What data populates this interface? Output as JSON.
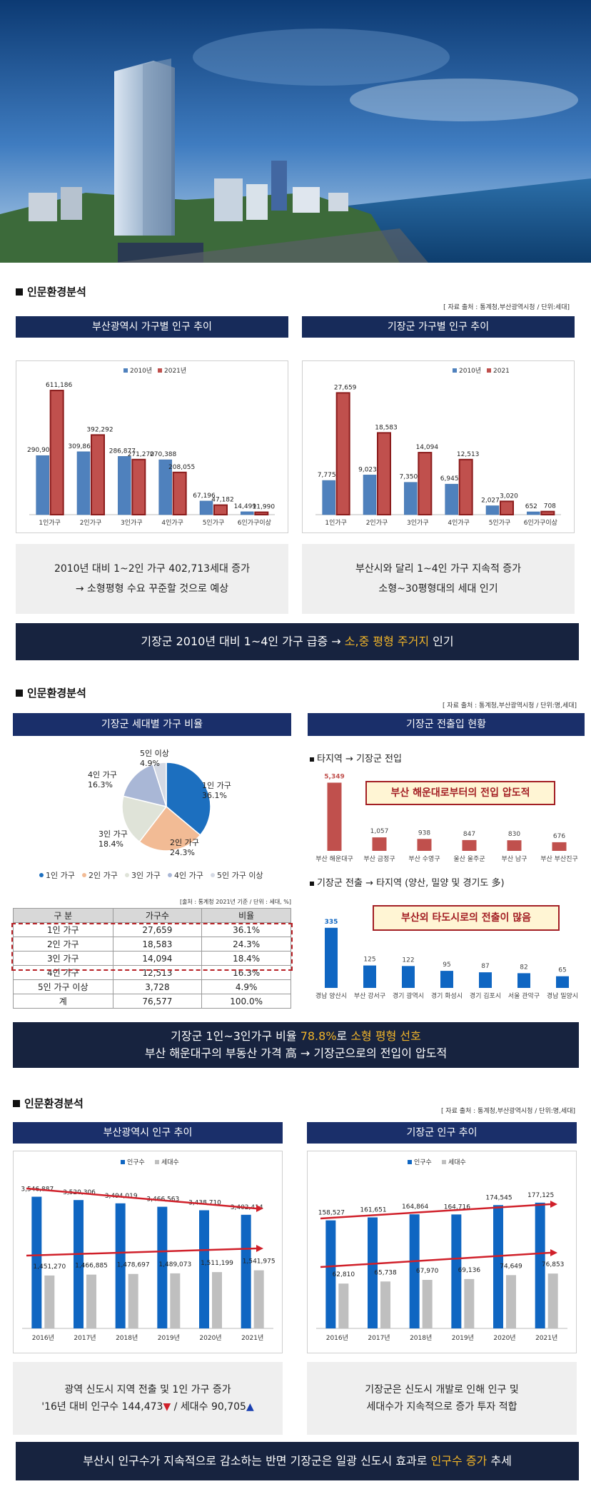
{
  "section1": {
    "title": "인문환경분석",
    "source": "[ 자료 출처 : 통계청,부산광역시청 / 단위:세대]",
    "left_header": "부산광역시 가구별 인구 추이",
    "right_header": "기장군 가구별 인구 추이",
    "left_note_1": "2010년 대비 1~2인 가구 402,713세대 증가",
    "left_note_2": "→ 소형평형 수요 꾸준할 것으로 예상",
    "right_note_1": "부산시와 달리 1~4인 가구 지속적 증가",
    "right_note_2": "소형~30평형대의 세대 인기",
    "banner_a": "기장군 2010년 대비 1~4인 가구 급증 → ",
    "banner_hl": "소,중 평형 주거지",
    "banner_b": " 인기"
  },
  "section2": {
    "title": "인문환경분석",
    "source": "[ 자료 출처 : 통계청,부산광역시청 / 단위:명,세대]",
    "left_header": "기장군 세대별 가구 비율",
    "right_header": "기장군 전출입 현황",
    "sub1": "타지역 → 기장군 전입",
    "sub2": "기장군 전출 → 타지역 (양산, 밀양 및 경기도 多)",
    "box1": "부산 해운대로부터의 전입 압도적",
    "box2": "부산외 타도시로의 전출이 많음",
    "table_source": "[출처 : 통계청 2021년 기준 / 단위 : 세대, %]",
    "table_headers": [
      "구 분",
      "가구수",
      "비율"
    ],
    "table_rows": [
      [
        "1인 가구",
        "27,659",
        "36.1%"
      ],
      [
        "2인 가구",
        "18,583",
        "24.3%"
      ],
      [
        "3인 가구",
        "14,094",
        "18.4%"
      ],
      [
        "4인 가구",
        "12,513",
        "16.3%"
      ],
      [
        "5인 가구 이상",
        "3,728",
        "4.9%"
      ],
      [
        "계",
        "76,577",
        "100.0%"
      ]
    ],
    "banner_l1a": "기장군 1인~3인가구 비율 ",
    "banner_l1hl": "78.8%",
    "banner_l1b": "로 ",
    "banner_l1hl2": "소형 평형 선호",
    "banner_l2": "부산 해운대구의 부동산 가격 高 → 기장군으로의 전입이 압도적"
  },
  "section3": {
    "title": "인문환경분석",
    "source": "[ 자료 출처 : 통계청,부산광역시청 / 단위:명,세대]",
    "left_header": "부산광역시 인구 추이",
    "right_header": "기장군 인구 추이",
    "left_note_1": "광역 신도시 지역 전출 및 1인 가구 증가",
    "left_note_2a": "'16년 대비 인구수 144,473",
    "left_note_down": "▼",
    "left_note_2b": " / 세대수 90,705",
    "left_note_up": "▲",
    "right_note_1": "기장군은 신도시 개발로 인해 인구 및",
    "right_note_2": "세대수가 지속적으로 증가 투자 적합",
    "banner_a": "부산시  인구수가 지속적으로  감소하는 반면 기장군은 일광 신도시 효과로  ",
    "banner_hl": "인구수 증가",
    "banner_b": "  추세"
  },
  "colors": {
    "navy": "#172b5a",
    "blue": "#4f81bd",
    "red": "#c0504d",
    "deep_blue": "#0f66c2",
    "gray": "#bfbfbf",
    "yellow": "#f0b429"
  },
  "chart_data": [
    {
      "type": "bar",
      "title": "부산광역시 가구별 인구 추이",
      "categories": [
        "1인가구",
        "2인가구",
        "3인가구",
        "4인가구",
        "5인가구",
        "6인가구이상"
      ],
      "series": [
        {
          "name": "2010년",
          "values": [
            290902,
            309863,
            286877,
            270388,
            67196,
            14499
          ],
          "labels": [
            "290,902",
            "309,863",
            "286,877",
            "270,388",
            "67,196",
            "14,499"
          ]
        },
        {
          "name": "2021년",
          "values": [
            611186,
            392292,
            271270,
            208055,
            47182,
            11990
          ],
          "labels": [
            "611,186",
            "392,292",
            "271,270",
            "208,055",
            "47,182",
            "11,990"
          ]
        }
      ],
      "ylim": [
        0,
        650000
      ]
    },
    {
      "type": "bar",
      "title": "기장군 가구별 인구 추이",
      "categories": [
        "1인가구",
        "2인가구",
        "3인가구",
        "4인가구",
        "5인가구",
        "6인가구이상"
      ],
      "series": [
        {
          "name": "2010년",
          "values": [
            7775,
            9023,
            7350,
            6945,
            2027,
            652
          ],
          "labels": [
            "7,775",
            "9,023",
            "7,350",
            "6,945",
            "2,027",
            "652"
          ]
        },
        {
          "name": "2021",
          "values": [
            27659,
            18583,
            14094,
            12513,
            3020,
            708
          ],
          "labels": [
            "27,659",
            "18,583",
            "14,094",
            "12,513",
            "3,020",
            "708"
          ]
        }
      ],
      "ylim": [
        0,
        30000
      ]
    },
    {
      "type": "pie",
      "title": "기장군 세대별 가구 비율",
      "categories": [
        "1인 가구",
        "2인 가구",
        "3인 가구",
        "4인 가구",
        "5인 가구 이상"
      ],
      "slice_labels": [
        "1인 가구",
        "2인 가구",
        "3인 가구",
        "4인 가구",
        "5인 이상"
      ],
      "values": [
        36.1,
        24.3,
        18.4,
        16.3,
        4.9
      ],
      "value_labels": [
        "36.1%",
        "24.3%",
        "18.4%",
        "16.3%",
        "4.9%"
      ],
      "colors": [
        "#1c6fbf",
        "#f2bb95",
        "#dfe3d8",
        "#a9b7d6",
        "#d4d9e4"
      ]
    },
    {
      "type": "bar",
      "title": "타지역 → 기장군 전입",
      "categories": [
        "부산 해운대구",
        "부산 금정구",
        "부산 수영구",
        "울산 울주군",
        "부산 남구",
        "부산 부산진구"
      ],
      "values": [
        5349,
        1057,
        938,
        847,
        830,
        676
      ],
      "labels": [
        "5,349",
        "1,057",
        "938",
        "847",
        "830",
        "676"
      ],
      "ylim": [
        0,
        5600
      ]
    },
    {
      "type": "bar",
      "title": "기장군 전출 → 타지역",
      "categories": [
        "경남 양산시",
        "부산 강서구",
        "경기 광역시",
        "경기 화성시",
        "경기 김포시",
        "서울 관악구",
        "경남 밀양시"
      ],
      "values": [
        335,
        125,
        122,
        95,
        87,
        82,
        65
      ],
      "labels": [
        "335",
        "125",
        "122",
        "95",
        "87",
        "82",
        "65"
      ],
      "ylim": [
        0,
        350
      ]
    },
    {
      "type": "bar",
      "title": "부산광역시 인구 추이",
      "categories": [
        "2016년",
        "2017년",
        "2018년",
        "2019년",
        "2020년",
        "2021년"
      ],
      "series": [
        {
          "name": "인구수",
          "values": [
            3546887,
            3520306,
            3494019,
            3466563,
            3438710,
            3402414
          ],
          "labels": [
            "3,546,887",
            "3,520,306",
            "3,494,019",
            "3,466,563",
            "3,438,710",
            "3,402,414"
          ]
        },
        {
          "name": "세대수",
          "values": [
            1451270,
            1466885,
            1478697,
            1489073,
            1511199,
            1541975
          ],
          "labels": [
            "1,451,270",
            "1,466,885",
            "1,478,697",
            "1,489,073",
            "1,511,199",
            "1,541,975"
          ]
        }
      ]
    },
    {
      "type": "bar",
      "title": "기장군 인구 추이",
      "categories": [
        "2016년",
        "2017년",
        "2018년",
        "2019년",
        "2020년",
        "2021년"
      ],
      "series": [
        {
          "name": "인구수",
          "values": [
            158527,
            161651,
            164864,
            164716,
            174545,
            177125
          ],
          "labels": [
            "158,527",
            "161,651",
            "164,864",
            "164,716",
            "174,545",
            "177,125"
          ]
        },
        {
          "name": "세대수",
          "values": [
            62810,
            65738,
            67970,
            69136,
            74649,
            76853
          ],
          "labels": [
            "62,810",
            "65,738",
            "67,970",
            "69,136",
            "74,649",
            "76,853"
          ]
        }
      ],
      "ylim": [
        0,
        180000
      ]
    }
  ]
}
